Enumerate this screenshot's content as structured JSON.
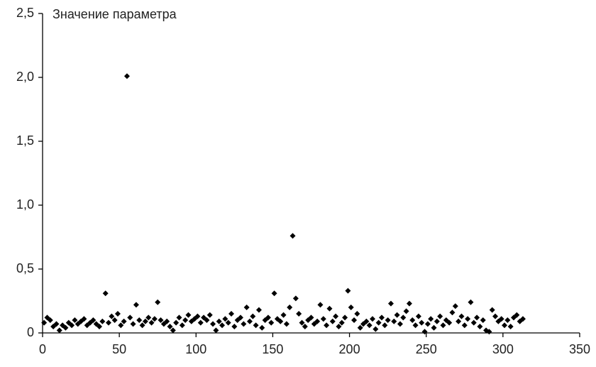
{
  "chart_data": {
    "type": "scatter",
    "y_label": "Значение параметра",
    "color": "#000000",
    "marker": "diamond",
    "x": [
      1,
      3,
      5,
      7,
      9,
      11,
      13,
      15,
      17,
      19,
      21,
      23,
      25,
      27,
      29,
      31,
      33,
      35,
      37,
      39,
      41,
      43,
      45,
      47,
      49,
      51,
      53,
      55,
      57,
      59,
      61,
      63,
      65,
      67,
      69,
      71,
      73,
      75,
      77,
      79,
      81,
      83,
      85,
      87,
      89,
      91,
      93,
      95,
      97,
      99,
      101,
      103,
      105,
      107,
      109,
      111,
      113,
      115,
      117,
      119,
      121,
      123,
      125,
      127,
      129,
      131,
      133,
      135,
      137,
      139,
      141,
      143,
      145,
      147,
      149,
      151,
      153,
      155,
      157,
      159,
      161,
      163,
      165,
      167,
      169,
      171,
      173,
      175,
      177,
      179,
      181,
      183,
      185,
      187,
      189,
      191,
      193,
      195,
      197,
      199,
      201,
      203,
      205,
      207,
      209,
      211,
      213,
      215,
      217,
      219,
      221,
      223,
      225,
      227,
      229,
      231,
      233,
      235,
      237,
      239,
      241,
      243,
      245,
      247,
      249,
      251,
      253,
      255,
      257,
      259,
      261,
      263,
      265,
      267,
      269,
      271,
      273,
      275,
      277,
      279,
      281,
      283,
      285,
      287,
      289,
      291,
      293,
      295,
      297,
      299,
      301,
      303,
      305,
      307,
      309,
      311,
      313
    ],
    "values": [
      0.08,
      0.12,
      0.1,
      0.05,
      0.07,
      0.02,
      0.06,
      0.04,
      0.08,
      0.06,
      0.1,
      0.07,
      0.09,
      0.11,
      0.06,
      0.08,
      0.1,
      0.07,
      0.05,
      0.09,
      0.31,
      0.08,
      0.13,
      0.1,
      0.15,
      0.06,
      0.09,
      2.01,
      0.12,
      0.07,
      0.22,
      0.1,
      0.06,
      0.09,
      0.12,
      0.08,
      0.11,
      0.24,
      0.1,
      0.07,
      0.09,
      0.05,
      0.02,
      0.08,
      0.12,
      0.06,
      0.1,
      0.14,
      0.09,
      0.11,
      0.13,
      0.08,
      0.12,
      0.1,
      0.14,
      0.07,
      0.02,
      0.09,
      0.06,
      0.11,
      0.08,
      0.15,
      0.05,
      0.1,
      0.12,
      0.07,
      0.2,
      0.09,
      0.13,
      0.06,
      0.18,
      0.04,
      0.1,
      0.12,
      0.08,
      0.31,
      0.11,
      0.09,
      0.14,
      0.07,
      0.2,
      0.76,
      0.27,
      0.15,
      0.08,
      0.05,
      0.1,
      0.12,
      0.07,
      0.09,
      0.22,
      0.11,
      0.06,
      0.19,
      0.09,
      0.13,
      0.05,
      0.08,
      0.12,
      0.33,
      0.2,
      0.1,
      0.15,
      0.04,
      0.07,
      0.09,
      0.06,
      0.11,
      0.03,
      0.08,
      0.12,
      0.06,
      0.1,
      0.23,
      0.09,
      0.14,
      0.07,
      0.12,
      0.17,
      0.23,
      0.1,
      0.06,
      0.13,
      0.08,
      0.01,
      0.07,
      0.11,
      0.04,
      0.09,
      0.13,
      0.06,
      0.1,
      0.08,
      0.16,
      0.21,
      0.09,
      0.13,
      0.06,
      0.11,
      0.24,
      0.08,
      0.12,
      0.05,
      0.1,
      0.02,
      0.01,
      0.18,
      0.13,
      0.09,
      0.11,
      0.06,
      0.1,
      0.05,
      0.12,
      0.14,
      0.09,
      0.11
    ],
    "xlim": [
      0,
      350
    ],
    "xticks": [
      0,
      50,
      100,
      150,
      200,
      250,
      300,
      350
    ],
    "ylim": [
      0,
      2.5
    ],
    "yticks": [
      0,
      {
        "value": 0.5,
        "label": "0,5"
      },
      {
        "value": 1.0,
        "label": "1,0"
      },
      {
        "value": 1.5,
        "label": "1,5"
      },
      {
        "value": 2.0,
        "label": "2,0"
      },
      {
        "value": 2.5,
        "label": "2,5"
      }
    ]
  }
}
